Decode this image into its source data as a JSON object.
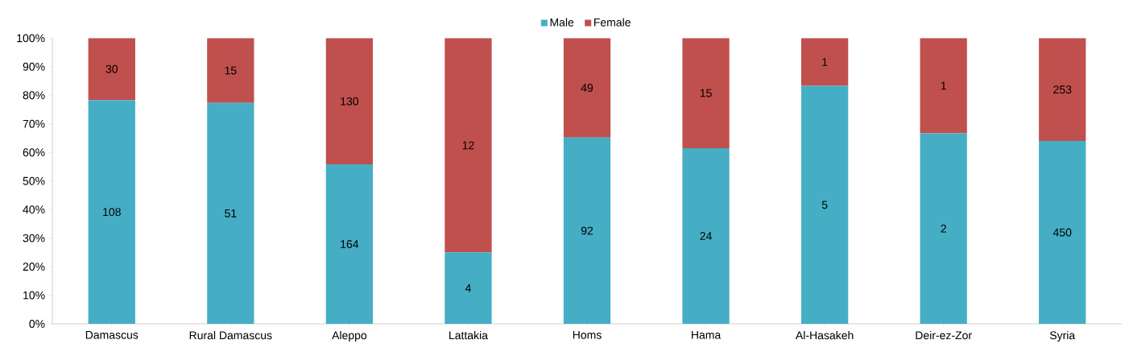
{
  "chart_data": {
    "type": "bar",
    "stacked": true,
    "categories": [
      "Damascus",
      "Rural Damascus",
      "Aleppo",
      "Lattakia",
      "Homs",
      "Hama",
      "Al-Hasakeh",
      "Deir-ez-Zor",
      "Syria"
    ],
    "series": [
      {
        "name": "Male",
        "color": "#45aec5",
        "values": [
          78.3,
          77.3,
          55.8,
          25,
          65.2,
          61.5,
          83.3,
          66.7,
          64.0
        ]
      },
      {
        "name": "Female",
        "color": "#c0504d",
        "values": [
          21.7,
          22.7,
          44.2,
          75,
          34.8,
          38.5,
          16.7,
          33.3,
          36.0
        ]
      }
    ],
    "annotations": [
      "108",
      "51",
      "164",
      "4",
      "92",
      "24",
      "5",
      "2",
      "450",
      "30",
      "15",
      "130",
      "12",
      "49",
      "15",
      "1",
      "1",
      "253"
    ],
    "ylim": [
      0,
      100
    ],
    "yticks": [
      {
        "value": 0,
        "label": "0%"
      },
      {
        "value": 10,
        "label": "10%"
      },
      {
        "value": 20,
        "label": "20%"
      },
      {
        "value": 30,
        "label": "30%"
      },
      {
        "value": 40,
        "label": "40%"
      },
      {
        "value": 50,
        "label": "50%"
      },
      {
        "value": 60,
        "label": "60%"
      },
      {
        "value": 70,
        "label": "70%"
      },
      {
        "value": 80,
        "label": "80%"
      },
      {
        "value": 90,
        "label": "90%"
      },
      {
        "value": 100,
        "label": "100%"
      }
    ],
    "grid": false,
    "legend": "top"
  }
}
